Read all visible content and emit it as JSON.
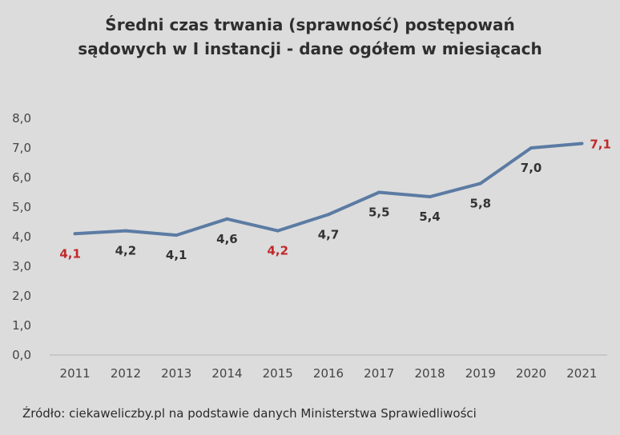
{
  "chart_data": {
    "type": "line",
    "title_lines": [
      "Średni czas trwania (sprawność) postępowań",
      "sądowych w I instancji - dane ogółem w miesiącach"
    ],
    "categories": [
      "2011",
      "2012",
      "2013",
      "2014",
      "2015",
      "2016",
      "2017",
      "2018",
      "2019",
      "2020",
      "2021"
    ],
    "values": [
      4.1,
      4.2,
      4.05,
      4.6,
      4.2,
      4.75,
      5.5,
      5.35,
      5.8,
      7.0,
      7.15
    ],
    "data_labels": [
      "4,1",
      "4,2",
      "4,1",
      "4,6",
      "4,2",
      "4,7",
      "5,5",
      "5,4",
      "5,8",
      "7,0",
      "7,1"
    ],
    "highlight_labels": [
      0,
      4,
      10
    ],
    "label_position": [
      "below",
      "below",
      "below",
      "below",
      "below",
      "below",
      "below",
      "below",
      "below",
      "below",
      "right"
    ],
    "y_ticks": [
      "0,0",
      "1,0",
      "2,0",
      "3,0",
      "4,0",
      "5,0",
      "6,0",
      "7,0",
      "8,0"
    ],
    "ylim": [
      0,
      8
    ],
    "grid": false,
    "colors": {
      "line": "#5b7ba3",
      "label": "#333333",
      "highlight": "#c0282b",
      "axis": "#b5b5b5"
    }
  },
  "source_note": "Źródło: ciekaweliczby.pl na podstawie danych Ministerstwa Sprawiedliwości"
}
